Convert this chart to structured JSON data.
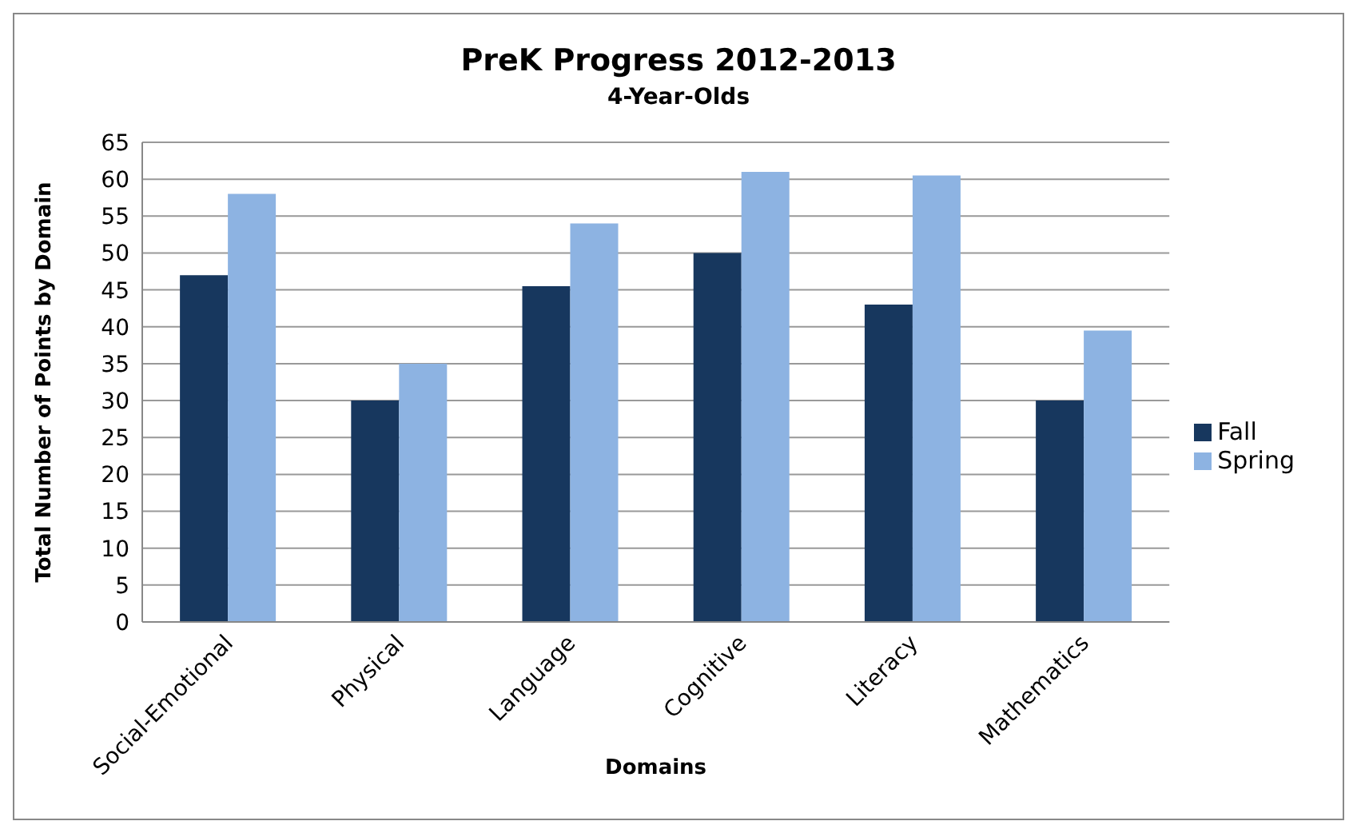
{
  "chart_data": {
    "type": "bar",
    "title": "PreK Progress 2012-2013",
    "subtitle": "4-Year-Olds",
    "xlabel": "Domains",
    "ylabel": "Total Number of Points by Domain",
    "categories": [
      "Social-Emotional",
      "Physical",
      "Language",
      "Cognitive",
      "Literacy",
      "Mathematics"
    ],
    "series": [
      {
        "name": "Fall",
        "color": "#17375e",
        "values": [
          47,
          30,
          45.5,
          50,
          43,
          30
        ]
      },
      {
        "name": "Spring",
        "color": "#8db3e2",
        "values": [
          58,
          35,
          54,
          61,
          60.5,
          39.5
        ]
      }
    ],
    "ylim": [
      0,
      65
    ],
    "yticks": [
      0,
      5,
      10,
      15,
      20,
      25,
      30,
      35,
      40,
      45,
      50,
      55,
      60,
      65
    ],
    "grid": "y",
    "legend": "right"
  }
}
